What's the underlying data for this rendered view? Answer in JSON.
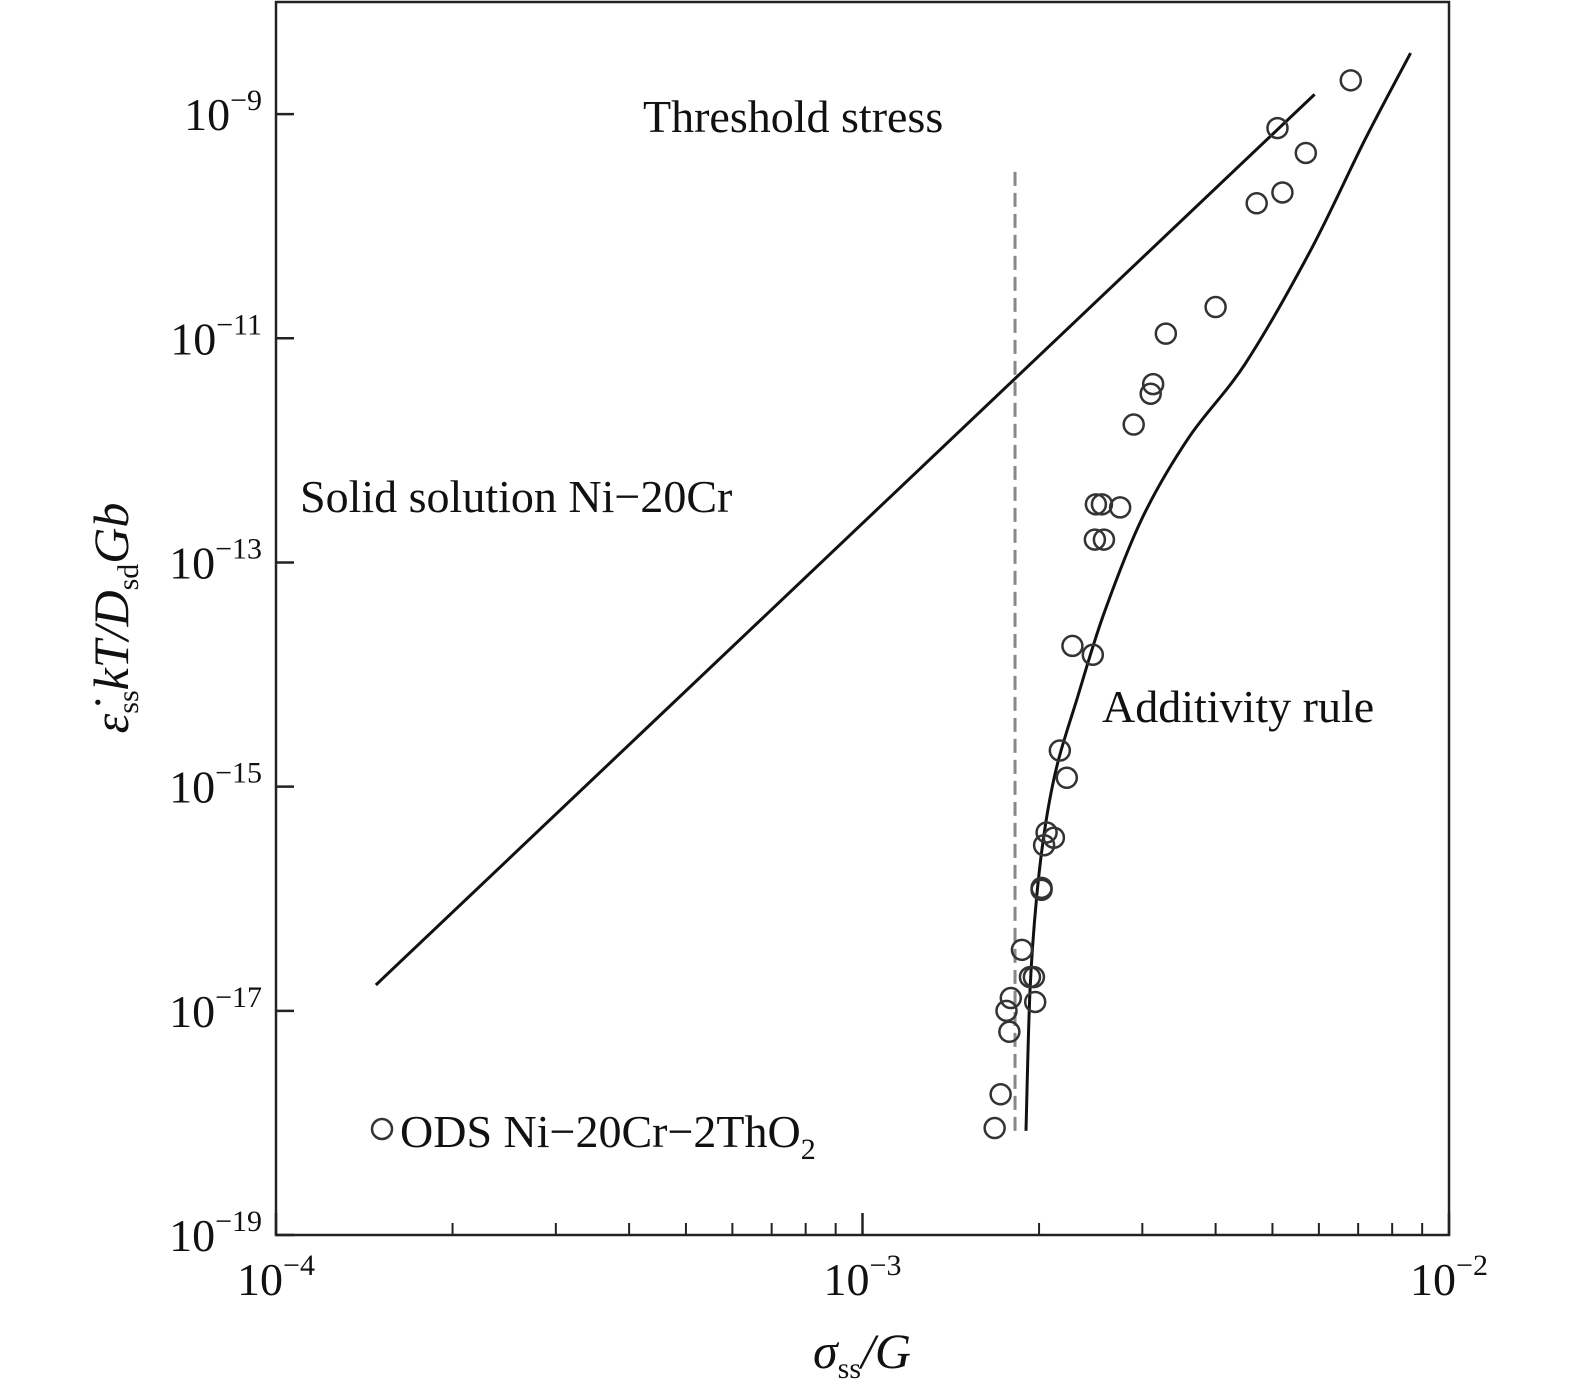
{
  "chart_data": {
    "type": "scatter",
    "xscale": "log",
    "yscale": "log",
    "xlim": [
      0.0001,
      0.01
    ],
    "ylim": [
      1e-19,
      1e-08
    ],
    "xlabel": "σss/G",
    "ylabel": "ε̇ss kT/Dsd Gb",
    "grid": false,
    "x_ticks": [
      {
        "value": 0.0001,
        "base": "10",
        "exp": "−4"
      },
      {
        "value": 0.001,
        "base": "10",
        "exp": "−3"
      },
      {
        "value": 0.01,
        "base": "10",
        "exp": "−2"
      }
    ],
    "y_ticks": [
      {
        "value": 1e-09,
        "base": "10",
        "exp": "−9"
      },
      {
        "value": 1e-11,
        "base": "10",
        "exp": "−11"
      },
      {
        "value": 1e-13,
        "base": "10",
        "exp": "−13"
      },
      {
        "value": 1e-15,
        "base": "10",
        "exp": "−15"
      },
      {
        "value": 1e-17,
        "base": "10",
        "exp": "−17"
      },
      {
        "value": 1e-19,
        "base": "10",
        "exp": "−19"
      }
    ],
    "annotations": {
      "threshold": "Threshold stress",
      "solid_solution": "Solid solution Ni−20Cr",
      "additivity": "Additivity rule"
    },
    "legend": {
      "label": "ODS Ni−20Cr−2ThO",
      "subscript": "2",
      "placement": "bottom-left"
    },
    "threshold_line": {
      "x": 0.00182,
      "y_range": [
        8.5e-19,
        3.5e-10
      ],
      "style": "dashed"
    },
    "solid_solution_line": {
      "x": [
        0.000148,
        0.0059
      ],
      "y": [
        1.7e-17,
        1.5e-09
      ]
    },
    "additivity_curve": {
      "x": [
        0.0019,
        0.00193,
        0.00198,
        0.00205,
        0.00215,
        0.00232,
        0.00258,
        0.003,
        0.0036,
        0.0045,
        0.0058,
        0.0072,
        0.0086
      ],
      "y": [
        8.5e-19,
        1.5e-17,
        1e-16,
        4.5e-16,
        1.6e-15,
        6e-15,
        3.5e-14,
        2.5e-13,
        1.3e-12,
        6e-12,
        6e-11,
        6e-10,
        3.5e-09
      ]
    },
    "series": [
      {
        "name": "ODS Ni−20Cr−2ThO2",
        "marker": "circle-open",
        "points": [
          [
            0.00168,
            9e-19
          ],
          [
            0.00172,
            1.8e-18
          ],
          [
            0.00178,
            6.5e-18
          ],
          [
            0.00176,
            1e-17
          ],
          [
            0.00179,
            1.3e-17
          ],
          [
            0.00197,
            1.2e-17
          ],
          [
            0.00193,
            2e-17
          ],
          [
            0.00196,
            2e-17
          ],
          [
            0.00187,
            3.5e-17
          ],
          [
            0.00202,
            1.2e-16
          ],
          [
            0.00202,
            1.25e-16
          ],
          [
            0.00204,
            3e-16
          ],
          [
            0.00206,
            3.9e-16
          ],
          [
            0.00212,
            3.5e-16
          ],
          [
            0.00223,
            1.2e-15
          ],
          [
            0.00217,
            2.1e-15
          ],
          [
            0.00247,
            1.5e-14
          ],
          [
            0.00228,
            1.8e-14
          ],
          [
            0.00249,
            1.6e-13
          ],
          [
            0.00258,
            1.6e-13
          ],
          [
            0.0025,
            3.3e-13
          ],
          [
            0.00256,
            3.3e-13
          ],
          [
            0.00275,
            3.1e-13
          ],
          [
            0.0029,
            1.7e-12
          ],
          [
            0.0031,
            3.2e-12
          ],
          [
            0.00313,
            3.9e-12
          ],
          [
            0.00329,
            1.1e-11
          ],
          [
            0.004,
            1.9e-11
          ],
          [
            0.0047,
            1.6e-10
          ],
          [
            0.0052,
            2e-10
          ],
          [
            0.0051,
            7.5e-10
          ],
          [
            0.0057,
            4.5e-10
          ],
          [
            0.0068,
            2e-09
          ]
        ]
      }
    ]
  }
}
